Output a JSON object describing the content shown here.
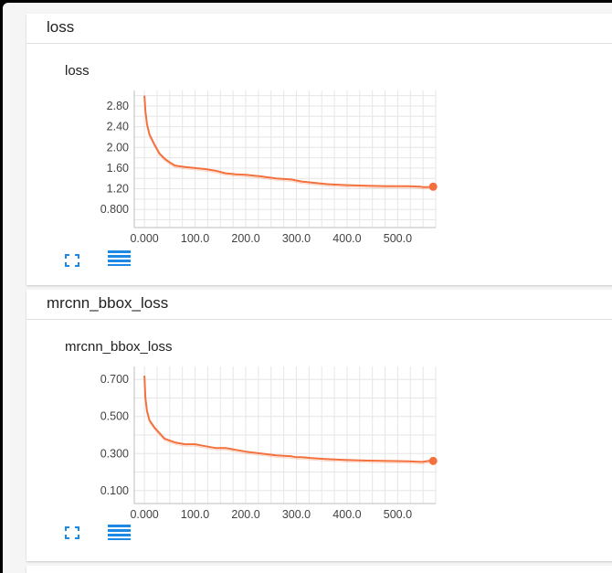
{
  "sections": [
    {
      "header": "loss",
      "card_title": "loss",
      "chart_data": {
        "type": "line",
        "title": "loss",
        "xlabel": "",
        "ylabel": "",
        "xlim": [
          -20,
          575
        ],
        "ylim": [
          0.45,
          3.1
        ],
        "x_ticks": [
          "0.000",
          "100.0",
          "200.0",
          "300.0",
          "400.0",
          "500.0"
        ],
        "y_ticks": [
          "0.800",
          "1.20",
          "1.60",
          "2.00",
          "2.40",
          "2.80"
        ],
        "grid": true,
        "series": [
          {
            "color": "#f4703c",
            "x": [
              0,
              2,
              5,
              10,
              20,
              30,
              40,
              50,
              60,
              80,
              100,
              120,
              140,
              160,
              180,
              200,
              230,
              260,
              290,
              300,
              310,
              330,
              360,
              400,
              440,
              480,
              520,
              545,
              550,
              560,
              570
            ],
            "y": [
              3.0,
              2.7,
              2.45,
              2.25,
              2.05,
              1.88,
              1.78,
              1.71,
              1.65,
              1.62,
              1.6,
              1.58,
              1.55,
              1.5,
              1.48,
              1.47,
              1.44,
              1.4,
              1.38,
              1.36,
              1.34,
              1.32,
              1.29,
              1.27,
              1.26,
              1.25,
              1.25,
              1.24,
              1.23,
              1.23,
              1.24
            ]
          }
        ]
      },
      "controls": {
        "expand_icon": "expand-icon",
        "data_icon": "data-table-icon"
      }
    },
    {
      "header": "mrcnn_bbox_loss",
      "card_title": "mrcnn_bbox_loss",
      "chart_data": {
        "type": "line",
        "title": "mrcnn_bbox_loss",
        "xlabel": "",
        "ylabel": "",
        "xlim": [
          -20,
          575
        ],
        "ylim": [
          0.03,
          0.77
        ],
        "x_ticks": [
          "0.000",
          "100.0",
          "200.0",
          "300.0",
          "400.0",
          "500.0"
        ],
        "y_ticks": [
          "0.100",
          "0.300",
          "0.500",
          "0.700"
        ],
        "grid": true,
        "series": [
          {
            "color": "#f4703c",
            "x": [
              0,
              2,
              5,
              10,
              20,
              30,
              40,
              50,
              60,
              80,
              100,
              120,
              140,
              160,
              180,
              200,
              230,
              260,
              290,
              300,
              310,
              330,
              360,
              400,
              440,
              480,
              520,
              545,
              550,
              560,
              570
            ],
            "y": [
              0.72,
              0.6,
              0.53,
              0.48,
              0.44,
              0.41,
              0.38,
              0.37,
              0.36,
              0.35,
              0.35,
              0.34,
              0.33,
              0.33,
              0.32,
              0.31,
              0.3,
              0.29,
              0.285,
              0.28,
              0.28,
              0.275,
              0.27,
              0.265,
              0.262,
              0.26,
              0.258,
              0.255,
              0.255,
              0.26,
              0.26
            ]
          }
        ]
      },
      "controls": {
        "expand_icon": "expand-icon",
        "data_icon": "data-table-icon"
      }
    }
  ],
  "colors": {
    "accent": "#f4703c",
    "control_blue": "#1e88e5",
    "grid": "#e6e6e6"
  }
}
